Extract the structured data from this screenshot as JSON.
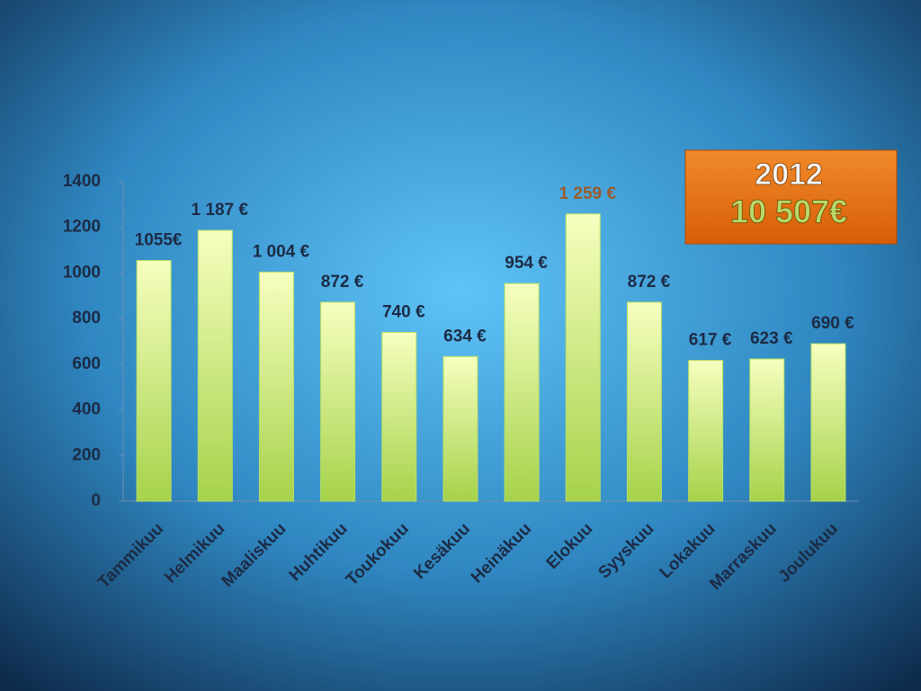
{
  "chart_data": {
    "type": "bar",
    "categories": [
      "Tammikuu",
      "Helmikuu",
      "Maaliskuu",
      "Huhtikuu",
      "Toukokuu",
      "Kesäkuu",
      "Heinäkuu",
      "Elokuu",
      "Syyskuu",
      "Lokakuu",
      "Marraskuu",
      "Joulukuu"
    ],
    "values": [
      1055,
      1187,
      1004,
      872,
      740,
      634,
      954,
      1259,
      872,
      617,
      623,
      690
    ],
    "value_labels": [
      "1055€",
      "1 187  €",
      "1 004  €",
      "872  €",
      "740  €",
      "634  €",
      "954  €",
      "1 259  €",
      "872  €",
      "617  €",
      "623  €",
      "690  €"
    ],
    "value_label_colors": [
      "#1c2b45",
      "#1c2b45",
      "#1c2b45",
      "#1c2b45",
      "#1c2b45",
      "#1c2b45",
      "#1c2b45",
      "#9a5a2a",
      "#1c2b45",
      "#1c2b45",
      "#1c2b45",
      "#1c2b45"
    ],
    "color": "#b8e060",
    "ylim": [
      0,
      1400
    ],
    "yticks": [
      0,
      200,
      400,
      600,
      800,
      1000,
      1200,
      1400
    ],
    "grid": false,
    "annotations": [
      "2012",
      "10 507€"
    ]
  }
}
